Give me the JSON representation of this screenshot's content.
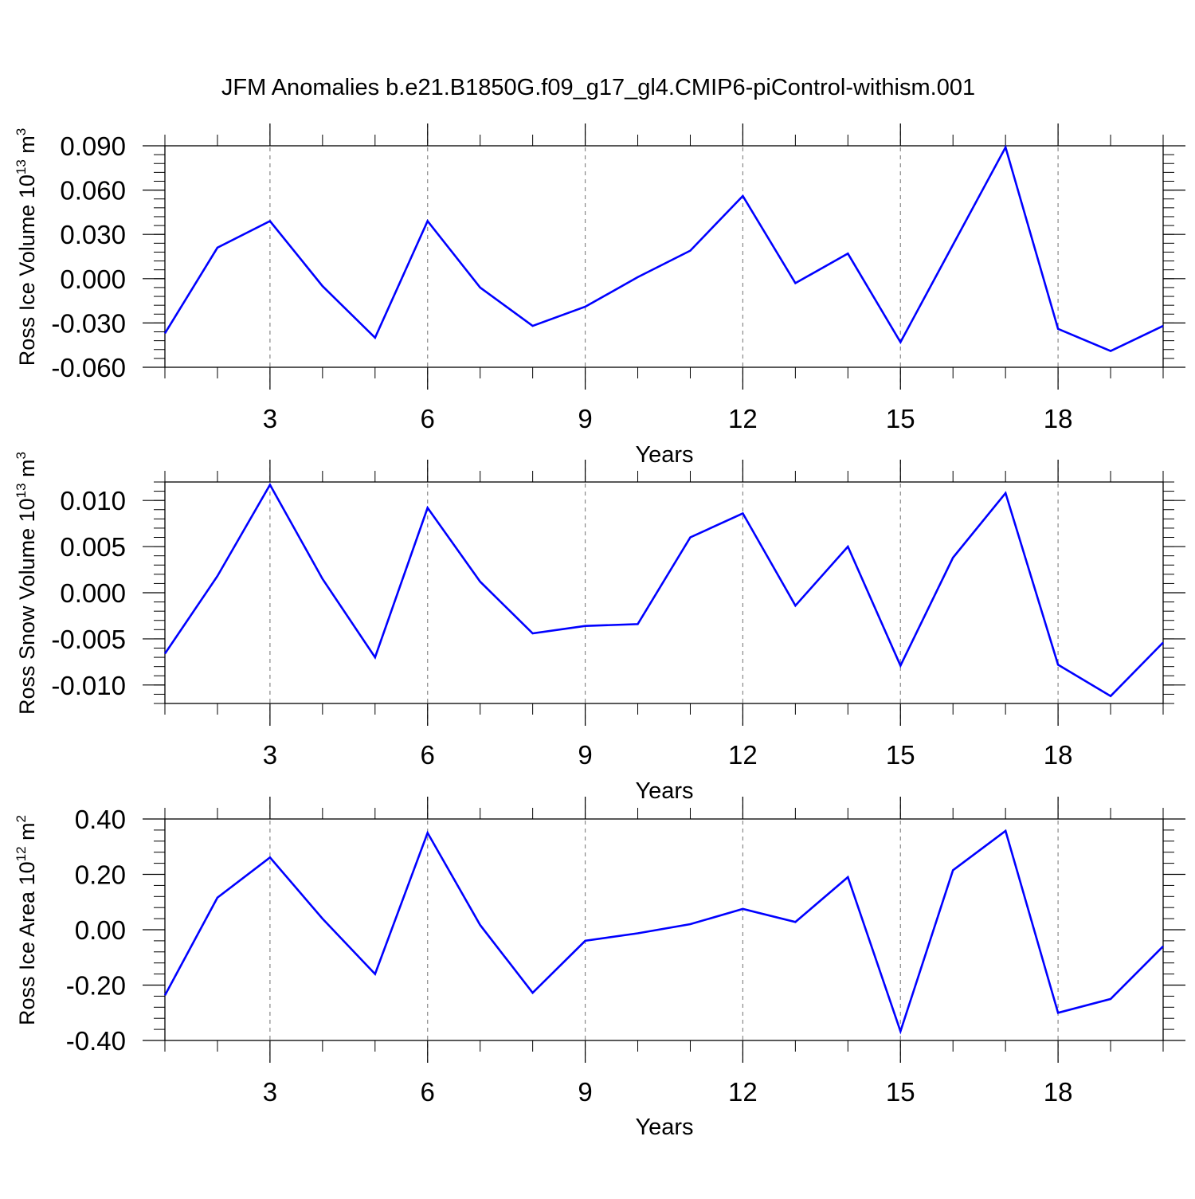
{
  "title": "JFM Anomalies b.e21.B1850G.f09_g17_gl4.CMIP6-piControl-withism.001",
  "line_color": "#0000ff",
  "chart_data": [
    {
      "type": "line",
      "ylabel": "Ross Ice Volume 10",
      "ylabel_exp": "13",
      "ylabel_unit": " m",
      "ylabel_unit_exp": "3",
      "xlabel": "Years",
      "xlim": [
        1,
        20
      ],
      "ylim": [
        -0.06,
        0.09
      ],
      "yticks": [
        -0.06,
        -0.03,
        0.0,
        0.03,
        0.06,
        0.09
      ],
      "yticklabels": [
        "-0.060",
        "-0.030",
        "0.000",
        "0.030",
        "0.060",
        "0.090"
      ],
      "xticks": [
        3,
        6,
        9,
        12,
        15,
        18
      ],
      "xticklabels": [
        "3",
        "6",
        "9",
        "12",
        "15",
        "18"
      ],
      "x": [
        1,
        2,
        3,
        4,
        5,
        6,
        7,
        8,
        9,
        10,
        11,
        12,
        13,
        14,
        15,
        16,
        17,
        18,
        19,
        20
      ],
      "values": [
        -0.037,
        0.021,
        0.039,
        -0.005,
        -0.04,
        0.039,
        -0.006,
        -0.032,
        -0.019,
        0.001,
        0.019,
        0.056,
        -0.003,
        0.017,
        -0.043,
        0.023,
        0.089,
        -0.034,
        -0.049,
        -0.032
      ]
    },
    {
      "type": "line",
      "ylabel": "Ross Snow Volume 10",
      "ylabel_exp": "13",
      "ylabel_unit": " m",
      "ylabel_unit_exp": "3",
      "xlabel": "Years",
      "xlim": [
        1,
        20
      ],
      "ylim": [
        -0.012,
        0.012
      ],
      "yticks": [
        -0.01,
        -0.005,
        0.0,
        0.005,
        0.01
      ],
      "yticklabels": [
        "-0.010",
        "-0.005",
        "0.000",
        "0.005",
        "0.010"
      ],
      "xticks": [
        3,
        6,
        9,
        12,
        15,
        18
      ],
      "xticklabels": [
        "3",
        "6",
        "9",
        "12",
        "15",
        "18"
      ],
      "x": [
        1,
        2,
        3,
        4,
        5,
        6,
        7,
        8,
        9,
        10,
        11,
        12,
        13,
        14,
        15,
        16,
        17,
        18,
        19,
        20
      ],
      "values": [
        -0.0066,
        0.0018,
        0.0117,
        0.0015,
        -0.007,
        0.0092,
        0.0012,
        -0.0044,
        -0.0036,
        -0.0034,
        0.006,
        0.0086,
        -0.0014,
        0.005,
        -0.0079,
        0.0038,
        0.0108,
        -0.0078,
        -0.0112,
        -0.0054
      ]
    },
    {
      "type": "line",
      "ylabel": "Ross Ice Area 10",
      "ylabel_exp": "12",
      "ylabel_unit": " m",
      "ylabel_unit_exp": "2",
      "xlabel": "Years",
      "xlim": [
        1,
        20
      ],
      "ylim": [
        -0.4,
        0.4
      ],
      "yticks": [
        -0.4,
        -0.2,
        0.0,
        0.2,
        0.4
      ],
      "yticklabels": [
        "-0.40",
        "-0.20",
        "0.00",
        "0.20",
        "0.40"
      ],
      "xticks": [
        3,
        6,
        9,
        12,
        15,
        18
      ],
      "xticklabels": [
        "3",
        "6",
        "9",
        "12",
        "15",
        "18"
      ],
      "x": [
        1,
        2,
        3,
        4,
        5,
        6,
        7,
        8,
        9,
        10,
        11,
        12,
        13,
        14,
        15,
        16,
        17,
        18,
        19,
        20
      ],
      "values": [
        -0.237,
        0.116,
        0.261,
        0.04,
        -0.16,
        0.35,
        0.017,
        -0.228,
        -0.04,
        -0.013,
        0.02,
        0.075,
        0.028,
        0.19,
        -0.367,
        0.215,
        0.357,
        -0.3,
        -0.25,
        -0.06
      ]
    }
  ]
}
